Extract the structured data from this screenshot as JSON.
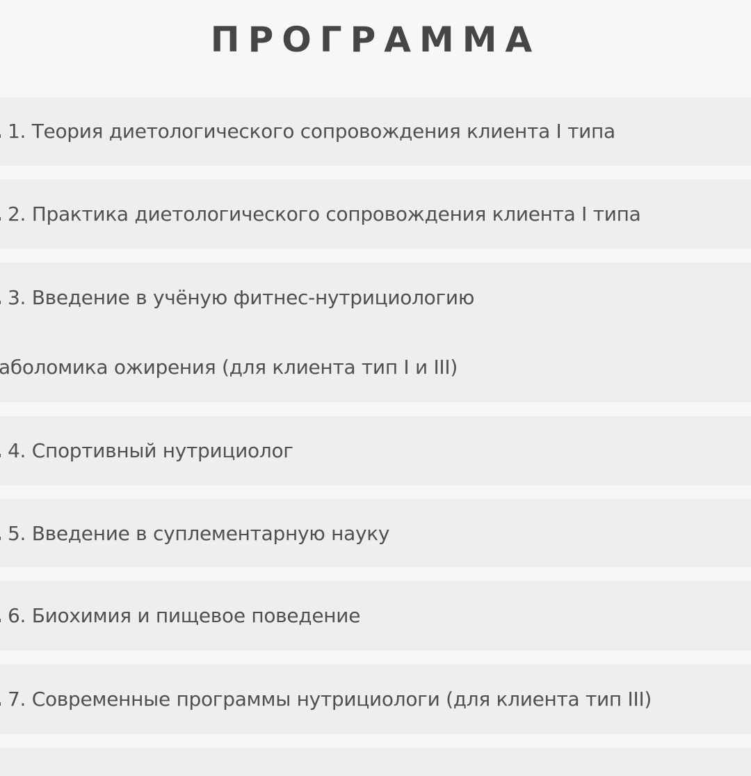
{
  "title": "ПРОГРАММА",
  "modules": [
    {
      "lines": [
        "1. Теория диетологического сопровождения клиента I типа"
      ]
    },
    {
      "lines": [
        "2. Практика диетологического сопровождения клиента I типа"
      ]
    },
    {
      "lines": [
        "3. Введение в учёную фитнес-нутрициологию",
        "аболомика ожирения (для клиента тип I и III)"
      ]
    },
    {
      "lines": [
        "4. Спортивный нутрициолог"
      ]
    },
    {
      "lines": [
        "5. Введение в суплементарную науку"
      ]
    },
    {
      "lines": [
        "6. Биохимия и пищевое поведение"
      ]
    },
    {
      "lines": [
        "7. Современные программы нутрициологи (для клиента тип III)"
      ]
    }
  ],
  "colors": {
    "background": "#f7f7f7",
    "row": "#eeeeee",
    "text": "#505050",
    "title": "#464646"
  }
}
